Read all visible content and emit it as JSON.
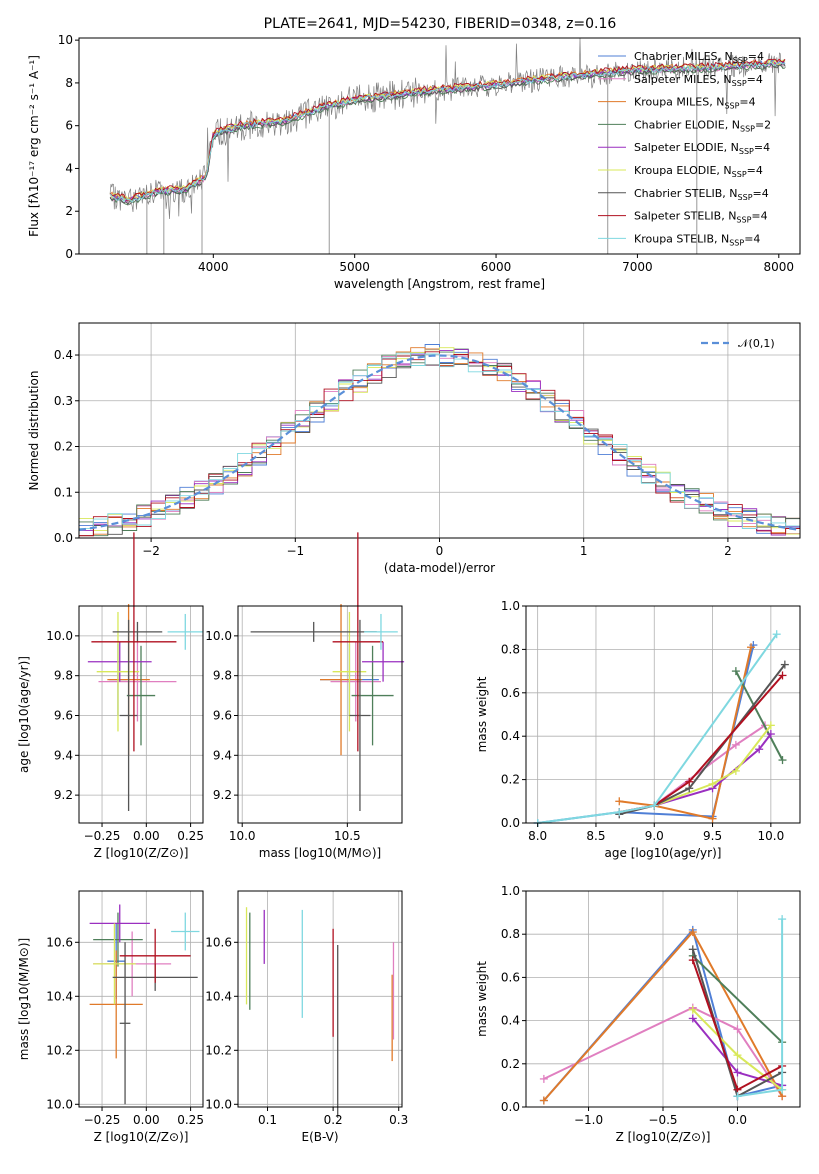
{
  "figure_title": "PLATE=2641, MJD=54230, FIBERID=0348, z=0.16",
  "colors": {
    "Chabrier MILES": "#4f7fd6",
    "Salpeter MILES": "#e07fc0",
    "Kroupa MILES": "#e07a2a",
    "Chabrier ELODIE": "#4f7f5a",
    "Salpeter ELODIE": "#9a2fc0",
    "Kroupa ELODIE": "#d8e85a",
    "Chabrier STELIB": "#555555",
    "Salpeter STELIB": "#b01020",
    "Kroupa STELIB": "#7fd8e0",
    "data": "#808080"
  },
  "chart_data": [
    {
      "type": "line",
      "id": "spectrum",
      "title": "PLATE=2641, MJD=54230, FIBERID=0348, z=0.16",
      "xlabel": "wavelength [Angstrom, rest frame]",
      "ylabel": "Flux [fλ10⁻¹⁷ erg cm⁻² s⁻¹ A⁻¹]",
      "xlim": [
        3050,
        8150
      ],
      "ylim": [
        0,
        10.1
      ],
      "xticks": [
        4000,
        5000,
        6000,
        7000,
        8000
      ],
      "yticks": [
        0,
        2,
        4,
        6,
        8,
        10
      ],
      "legend_position": "top-right",
      "legend": [
        {
          "label": "Chabrier MILES, N",
          "sub": "SSP",
          "tail": "=4",
          "color": "#4f7fd6"
        },
        {
          "label": "Salpeter MILES, N",
          "sub": "SSP",
          "tail": "=4",
          "color": "#e07fc0"
        },
        {
          "label": "Kroupa MILES, N",
          "sub": "SSP",
          "tail": "=4",
          "color": "#e07a2a"
        },
        {
          "label": "Chabrier ELODIE, N",
          "sub": "SSP",
          "tail": "=2",
          "color": "#4f7f5a"
        },
        {
          "label": "Salpeter ELODIE, N",
          "sub": "SSP",
          "tail": "=4",
          "color": "#9a2fc0"
        },
        {
          "label": "Kroupa ELODIE, N",
          "sub": "SSP",
          "tail": "=4",
          "color": "#d8e85a"
        },
        {
          "label": "Chabrier STELIB, N",
          "sub": "SSP",
          "tail": "=4",
          "color": "#555555"
        },
        {
          "label": "Salpeter STELIB, N",
          "sub": "SSP",
          "tail": "=4",
          "color": "#b01020"
        },
        {
          "label": "Kroupa STELIB, N",
          "sub": "SSP",
          "tail": "=4",
          "color": "#7fd8e0"
        }
      ],
      "continuum": [
        [
          3270,
          2.7
        ],
        [
          3400,
          2.5
        ],
        [
          3600,
          2.9
        ],
        [
          3800,
          3.0
        ],
        [
          3950,
          3.6
        ],
        [
          4000,
          5.6
        ],
        [
          4200,
          6.0
        ],
        [
          4500,
          6.2
        ],
        [
          4800,
          6.9
        ],
        [
          5000,
          7.2
        ],
        [
          5500,
          7.6
        ],
        [
          6000,
          7.9
        ],
        [
          6500,
          8.3
        ],
        [
          7000,
          8.6
        ],
        [
          7500,
          8.7
        ],
        [
          8000,
          8.9
        ]
      ]
    },
    {
      "type": "histogram",
      "id": "residuals",
      "xlabel": "(data-model)/error",
      "ylabel": "Normed distribution",
      "xlim": [
        -2.5,
        2.5
      ],
      "ylim": [
        0,
        0.47
      ],
      "xticks": [
        -2,
        -1,
        0,
        1,
        2
      ],
      "yticks": [
        0.0,
        0.1,
        0.2,
        0.3,
        0.4
      ],
      "legend_position": "top-right",
      "legend": [
        {
          "label": "𝒩(0,1)",
          "color": "#5a8fd8",
          "style": "dashed"
        }
      ],
      "bin_edges_start": -2.5,
      "bin_width": 0.1,
      "reference_curve": "normal(0,1)"
    },
    {
      "type": "scatter",
      "id": "age_vs_Z",
      "xlabel": "Z [log10(Z/Z⊙)]",
      "ylabel": "age [log10(age/yr)]",
      "xlim": [
        -0.38,
        0.32
      ],
      "ylim": [
        9.06,
        10.15
      ],
      "xticks": [
        -0.25,
        0.0,
        0.25
      ],
      "yticks": [
        9.2,
        9.4,
        9.6,
        9.8,
        10.0
      ],
      "points": [
        {
          "model": "Chabrier MILES",
          "x": -0.16,
          "xerr": 0.05,
          "y": 9.78,
          "yerr": 0.18
        },
        {
          "model": "Salpeter MILES",
          "x": -0.05,
          "xerr": 0.22,
          "y": 9.77,
          "yerr": 0.2
        },
        {
          "model": "Kroupa MILES",
          "x": -0.1,
          "xerr": 0.12,
          "y": 9.78,
          "yerr": 0.38
        },
        {
          "model": "Chabrier ELODIE",
          "x": -0.03,
          "xerr": 0.08,
          "y": 9.7,
          "yerr": 0.25
        },
        {
          "model": "Salpeter ELODIE",
          "x": -0.15,
          "xerr": 0.18,
          "y": 9.87,
          "yerr": 0.1
        },
        {
          "model": "Kroupa ELODIE",
          "x": -0.16,
          "xerr": 0.12,
          "y": 9.82,
          "yerr": 0.3
        },
        {
          "model": "Chabrier STELIB",
          "x": -0.05,
          "xerr": 0.14,
          "y": 10.02,
          "yerr": 0.05
        },
        {
          "model": "Chabrier STELIB b",
          "x": -0.1,
          "xerr": 0.05,
          "y": 9.6,
          "yerr": 0.48
        },
        {
          "model": "Salpeter STELIB",
          "x": -0.07,
          "xerr": 0.24,
          "y": 9.97,
          "yerr": 0.55
        },
        {
          "model": "Kroupa STELIB",
          "x": 0.22,
          "xerr": 0.1,
          "y": 10.02,
          "yerr": 0.09
        }
      ]
    },
    {
      "type": "scatter",
      "id": "age_vs_mass",
      "xlabel": "mass [log10(M/M⊙)]",
      "ylabel": "",
      "xlim": [
        9.98,
        10.76
      ],
      "ylim": [
        9.06,
        10.15
      ],
      "xticks": [
        10.0,
        10.5
      ],
      "yticks": [
        9.2,
        9.4,
        9.6,
        9.8,
        10.0
      ],
      "points": [
        {
          "model": "Chabrier MILES",
          "x": 10.51,
          "xerr": 0.14,
          "y": 9.78,
          "yerr": 0.18
        },
        {
          "model": "Salpeter MILES",
          "x": 10.54,
          "xerr": 0.12,
          "y": 9.77,
          "yerr": 0.2
        },
        {
          "model": "Kroupa MILES",
          "x": 10.47,
          "xerr": 0.1,
          "y": 9.78,
          "yerr": 0.38
        },
        {
          "model": "Chabrier ELODIE",
          "x": 10.62,
          "xerr": 0.1,
          "y": 9.7,
          "yerr": 0.25
        },
        {
          "model": "Salpeter ELODIE",
          "x": 10.67,
          "xerr": 0.1,
          "y": 9.87,
          "yerr": 0.1
        },
        {
          "model": "Kroupa ELODIE",
          "x": 10.51,
          "xerr": 0.08,
          "y": 9.82,
          "yerr": 0.3
        },
        {
          "model": "Chabrier STELIB",
          "x": 10.34,
          "xerr": 0.3,
          "y": 10.02,
          "yerr": 0.05
        },
        {
          "model": "Chabrier STELIB b",
          "x": 10.56,
          "xerr": 0.05,
          "y": 9.6,
          "yerr": 0.48
        },
        {
          "model": "Salpeter STELIB",
          "x": 10.55,
          "xerr": 0.12,
          "y": 9.97,
          "yerr": 0.55
        },
        {
          "model": "Kroupa STELIB",
          "x": 10.66,
          "xerr": 0.08,
          "y": 10.02,
          "yerr": 0.09
        }
      ]
    },
    {
      "type": "line",
      "id": "mass_weight_vs_age",
      "xlabel": "age [log10(age/yr)]",
      "ylabel": "mass weight",
      "xlim": [
        7.9,
        10.25
      ],
      "ylim": [
        0.0,
        1.0
      ],
      "xticks": [
        8.0,
        8.5,
        9.0,
        9.5,
        10.0
      ],
      "yticks": [
        0.0,
        0.2,
        0.4,
        0.6,
        0.8,
        1.0
      ],
      "series": [
        {
          "model": "Chabrier MILES",
          "x": [
            8.0,
            8.7,
            9.5,
            9.85
          ],
          "y": [
            0.0,
            0.05,
            0.03,
            0.82
          ]
        },
        {
          "model": "Salpeter MILES",
          "x": [
            8.7,
            9.0,
            9.7,
            9.95
          ],
          "y": [
            0.05,
            0.08,
            0.36,
            0.45
          ]
        },
        {
          "model": "Kroupa MILES",
          "x": [
            8.7,
            9.0,
            9.5,
            9.83
          ],
          "y": [
            0.1,
            0.08,
            0.02,
            0.81
          ]
        },
        {
          "model": "Chabrier ELODIE",
          "x": [
            9.7,
            10.1
          ],
          "y": [
            0.7,
            0.29
          ]
        },
        {
          "model": "Salpeter ELODIE",
          "x": [
            9.0,
            9.5,
            9.9,
            10.0
          ],
          "y": [
            0.08,
            0.16,
            0.34,
            0.41
          ]
        },
        {
          "model": "Kroupa ELODIE",
          "x": [
            9.0,
            9.5,
            9.7,
            10.0
          ],
          "y": [
            0.08,
            0.18,
            0.24,
            0.45
          ]
        },
        {
          "model": "Chabrier STELIB",
          "x": [
            8.7,
            9.0,
            9.3,
            10.12
          ],
          "y": [
            0.04,
            0.08,
            0.16,
            0.73
          ]
        },
        {
          "model": "Salpeter STELIB",
          "x": [
            8.7,
            9.0,
            9.3,
            10.1
          ],
          "y": [
            0.05,
            0.08,
            0.19,
            0.68
          ]
        },
        {
          "model": "Kroupa STELIB",
          "x": [
            8.0,
            8.7,
            9.0,
            10.05
          ],
          "y": [
            0.0,
            0.05,
            0.08,
            0.87
          ]
        }
      ]
    },
    {
      "type": "scatter",
      "id": "mass_vs_Z",
      "xlabel": "Z [log10(Z/Z⊙)]",
      "ylabel": "mass [log10(M/M⊙)]",
      "xlim": [
        -0.38,
        0.32
      ],
      "ylim": [
        9.99,
        10.79
      ],
      "xticks": [
        -0.25,
        0.0,
        0.25
      ],
      "yticks": [
        10.0,
        10.2,
        10.4,
        10.6
      ],
      "points": [
        {
          "model": "Chabrier MILES",
          "x": -0.17,
          "xerr": 0.05,
          "y": 10.53,
          "yerr": 0.14
        },
        {
          "model": "Salpeter MILES",
          "x": -0.08,
          "xerr": 0.22,
          "y": 10.52,
          "yerr": 0.12
        },
        {
          "model": "Kroupa MILES",
          "x": -0.17,
          "xerr": 0.15,
          "y": 10.37,
          "yerr": 0.2
        },
        {
          "model": "Chabrier ELODIE",
          "x": -0.16,
          "xerr": 0.14,
          "y": 10.61,
          "yerr": 0.1
        },
        {
          "model": "Salpeter ELODIE",
          "x": -0.15,
          "xerr": 0.17,
          "y": 10.67,
          "yerr": 0.07
        },
        {
          "model": "Kroupa ELODIE",
          "x": -0.18,
          "xerr": 0.12,
          "y": 10.52,
          "yerr": 0.15
        },
        {
          "model": "Chabrier STELIB",
          "x": 0.05,
          "xerr": 0.24,
          "y": 10.47,
          "yerr": 0.05
        },
        {
          "model": "Chabrier STELIB b",
          "x": -0.12,
          "xerr": 0.03,
          "y": 10.3,
          "yerr": 0.3
        },
        {
          "model": "Salpeter STELIB",
          "x": 0.05,
          "xerr": 0.2,
          "y": 10.55,
          "yerr": 0.1
        },
        {
          "model": "Kroupa STELIB",
          "x": 0.22,
          "xerr": 0.08,
          "y": 10.64,
          "yerr": 0.07
        }
      ]
    },
    {
      "type": "scatter",
      "id": "mass_vs_ebv",
      "xlabel": "E(B-V)",
      "ylabel": "",
      "xlim": [
        0.055,
        0.305
      ],
      "ylim": [
        9.99,
        10.79
      ],
      "xticks": [
        0.1,
        0.2,
        0.3
      ],
      "yticks": [
        10.0,
        10.2,
        10.4,
        10.6
      ],
      "points": [
        {
          "model": "Kroupa ELODIE",
          "x": 0.068,
          "y": 10.55,
          "yerr": 0.18
        },
        {
          "model": "Chabrier ELODIE",
          "x": 0.073,
          "y": 10.53,
          "yerr": 0.18
        },
        {
          "model": "Salpeter ELODIE",
          "x": 0.095,
          "y": 10.62,
          "yerr": 0.1
        },
        {
          "model": "Kroupa STELIB",
          "x": 0.153,
          "y": 10.52,
          "yerr": 0.2
        },
        {
          "model": "Salpeter STELIB",
          "x": 0.2,
          "y": 10.45,
          "yerr": 0.2
        },
        {
          "model": "Chabrier STELIB",
          "x": 0.207,
          "y": 10.27,
          "yerr": 0.32
        },
        {
          "model": "Kroupa MILES",
          "x": 0.29,
          "y": 10.32,
          "yerr": 0.16
        },
        {
          "model": "Salpeter MILES",
          "x": 0.292,
          "y": 10.42,
          "yerr": 0.18
        }
      ]
    },
    {
      "type": "line",
      "id": "mass_weight_vs_Z",
      "xlabel": "Z [log10(Z/Z⊙)]",
      "ylabel": "mass weight",
      "xlim": [
        -1.42,
        0.42
      ],
      "ylim": [
        0.0,
        1.0
      ],
      "xticks": [
        -1.0,
        -0.5,
        0.0
      ],
      "yticks": [
        0.0,
        0.2,
        0.4,
        0.6,
        0.8,
        1.0
      ],
      "series": [
        {
          "model": "Chabrier MILES",
          "x": [
            -1.3,
            -0.3,
            0.0,
            0.3
          ],
          "y": [
            0.03,
            0.82,
            0.05,
            0.1
          ]
        },
        {
          "model": "Salpeter MILES",
          "x": [
            -1.3,
            -0.3,
            0.0,
            0.3
          ],
          "y": [
            0.13,
            0.46,
            0.36,
            0.05
          ]
        },
        {
          "model": "Kroupa MILES",
          "x": [
            -1.3,
            -0.3,
            0.3
          ],
          "y": [
            0.03,
            0.81,
            0.05
          ]
        },
        {
          "model": "Chabrier ELODIE",
          "x": [
            -0.3,
            0.3
          ],
          "y": [
            0.7,
            0.3
          ]
        },
        {
          "model": "Salpeter ELODIE",
          "x": [
            -0.3,
            0.0,
            0.3
          ],
          "y": [
            0.41,
            0.16,
            0.1
          ]
        },
        {
          "model": "Kroupa ELODIE",
          "x": [
            -0.3,
            0.0,
            0.3
          ],
          "y": [
            0.45,
            0.24,
            0.08
          ]
        },
        {
          "model": "Chabrier STELIB",
          "x": [
            -0.3,
            0.0,
            0.3
          ],
          "y": [
            0.73,
            0.05,
            0.16
          ]
        },
        {
          "model": "Salpeter STELIB",
          "x": [
            -0.3,
            0.0,
            0.3
          ],
          "y": [
            0.68,
            0.08,
            0.19
          ]
        },
        {
          "model": "Kroupa STELIB",
          "x": [
            0.0,
            0.3,
            0.3
          ],
          "y": [
            0.05,
            0.08,
            0.87
          ]
        }
      ]
    }
  ]
}
